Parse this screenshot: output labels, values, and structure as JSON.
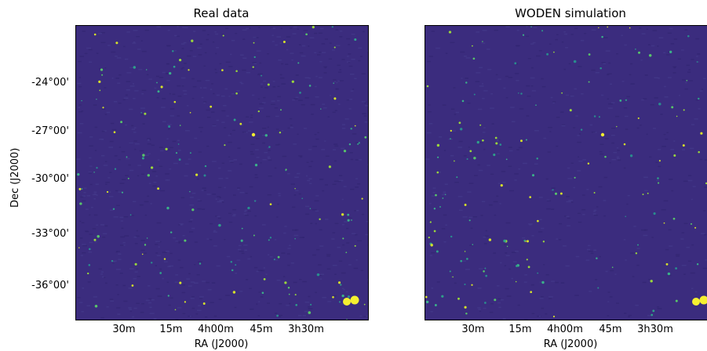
{
  "panels": [
    {
      "title": "Real data"
    },
    {
      "title": "WODEN simulation"
    }
  ],
  "axes": {
    "ylabel": "Dec (J2000)",
    "xlabel": "RA (J2000)",
    "yticks": [
      "-24°00'",
      "-27°00'",
      "-30°00'",
      "-33°00'",
      "-36°00'"
    ],
    "xticks": [
      "30m",
      "15m",
      "4h00m",
      "45m",
      "3h30m"
    ]
  },
  "colors": {
    "background": "#3b2c7e",
    "bright_source": "#f5f030"
  }
}
